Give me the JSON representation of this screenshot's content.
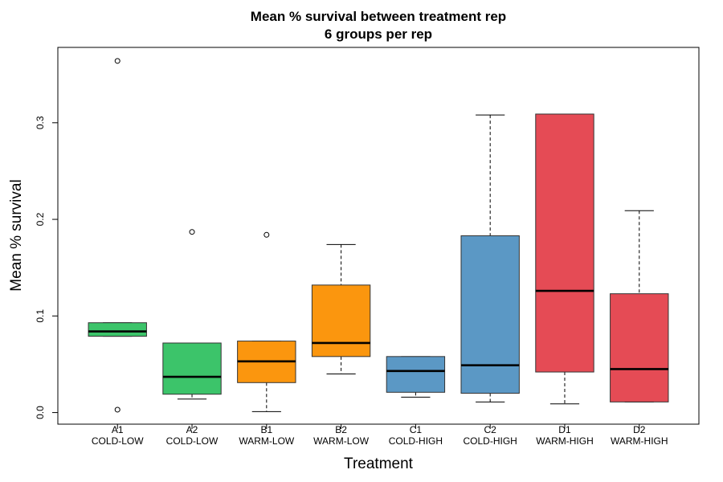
{
  "chart_data": {
    "type": "box",
    "title": "Mean % survival between treatment rep",
    "subtitle": "6 groups per rep",
    "xlabel": "Treatment",
    "ylabel": "Mean % survival",
    "ylim": [
      -0.012,
      0.378
    ],
    "yticks": [
      "0.0",
      "0.1",
      "0.2",
      "0.3"
    ],
    "grid": false,
    "legend": "none",
    "groups": [
      {
        "label1": "A1",
        "label2": "COLD-LOW",
        "color": "#3cc46a",
        "whisker_low": 0.079,
        "q1": 0.079,
        "median": 0.084,
        "q3": 0.093,
        "whisker_high": 0.093,
        "outliers": [
          0.364,
          0.003
        ]
      },
      {
        "label1": "A2",
        "label2": "COLD-LOW",
        "color": "#3cc46a",
        "whisker_low": 0.014,
        "q1": 0.019,
        "median": 0.037,
        "q3": 0.072,
        "whisker_high": 0.072,
        "outliers": [
          0.187
        ]
      },
      {
        "label1": "B1",
        "label2": "WARM-LOW",
        "color": "#fb960e",
        "whisker_low": 0.001,
        "q1": 0.031,
        "median": 0.053,
        "q3": 0.074,
        "whisker_high": 0.074,
        "outliers": [
          0.184
        ]
      },
      {
        "label1": "B2",
        "label2": "WARM-LOW",
        "color": "#fb960e",
        "whisker_low": 0.04,
        "q1": 0.058,
        "median": 0.072,
        "q3": 0.132,
        "whisker_high": 0.174,
        "outliers": []
      },
      {
        "label1": "C1",
        "label2": "COLD-HIGH",
        "color": "#5b98c5",
        "whisker_low": 0.016,
        "q1": 0.021,
        "median": 0.043,
        "q3": 0.058,
        "whisker_high": 0.058,
        "outliers": []
      },
      {
        "label1": "C2",
        "label2": "COLD-HIGH",
        "color": "#5b98c5",
        "whisker_low": 0.011,
        "q1": 0.02,
        "median": 0.049,
        "q3": 0.183,
        "whisker_high": 0.308,
        "outliers": []
      },
      {
        "label1": "D1",
        "label2": "WARM-HIGH",
        "color": "#e54b55",
        "whisker_low": 0.009,
        "q1": 0.042,
        "median": 0.126,
        "q3": 0.309,
        "whisker_high": 0.309,
        "outliers": []
      },
      {
        "label1": "D2",
        "label2": "WARM-HIGH",
        "color": "#e54b55",
        "whisker_low": 0.011,
        "q1": 0.011,
        "median": 0.045,
        "q3": 0.123,
        "whisker_high": 0.209,
        "outliers": []
      }
    ]
  }
}
